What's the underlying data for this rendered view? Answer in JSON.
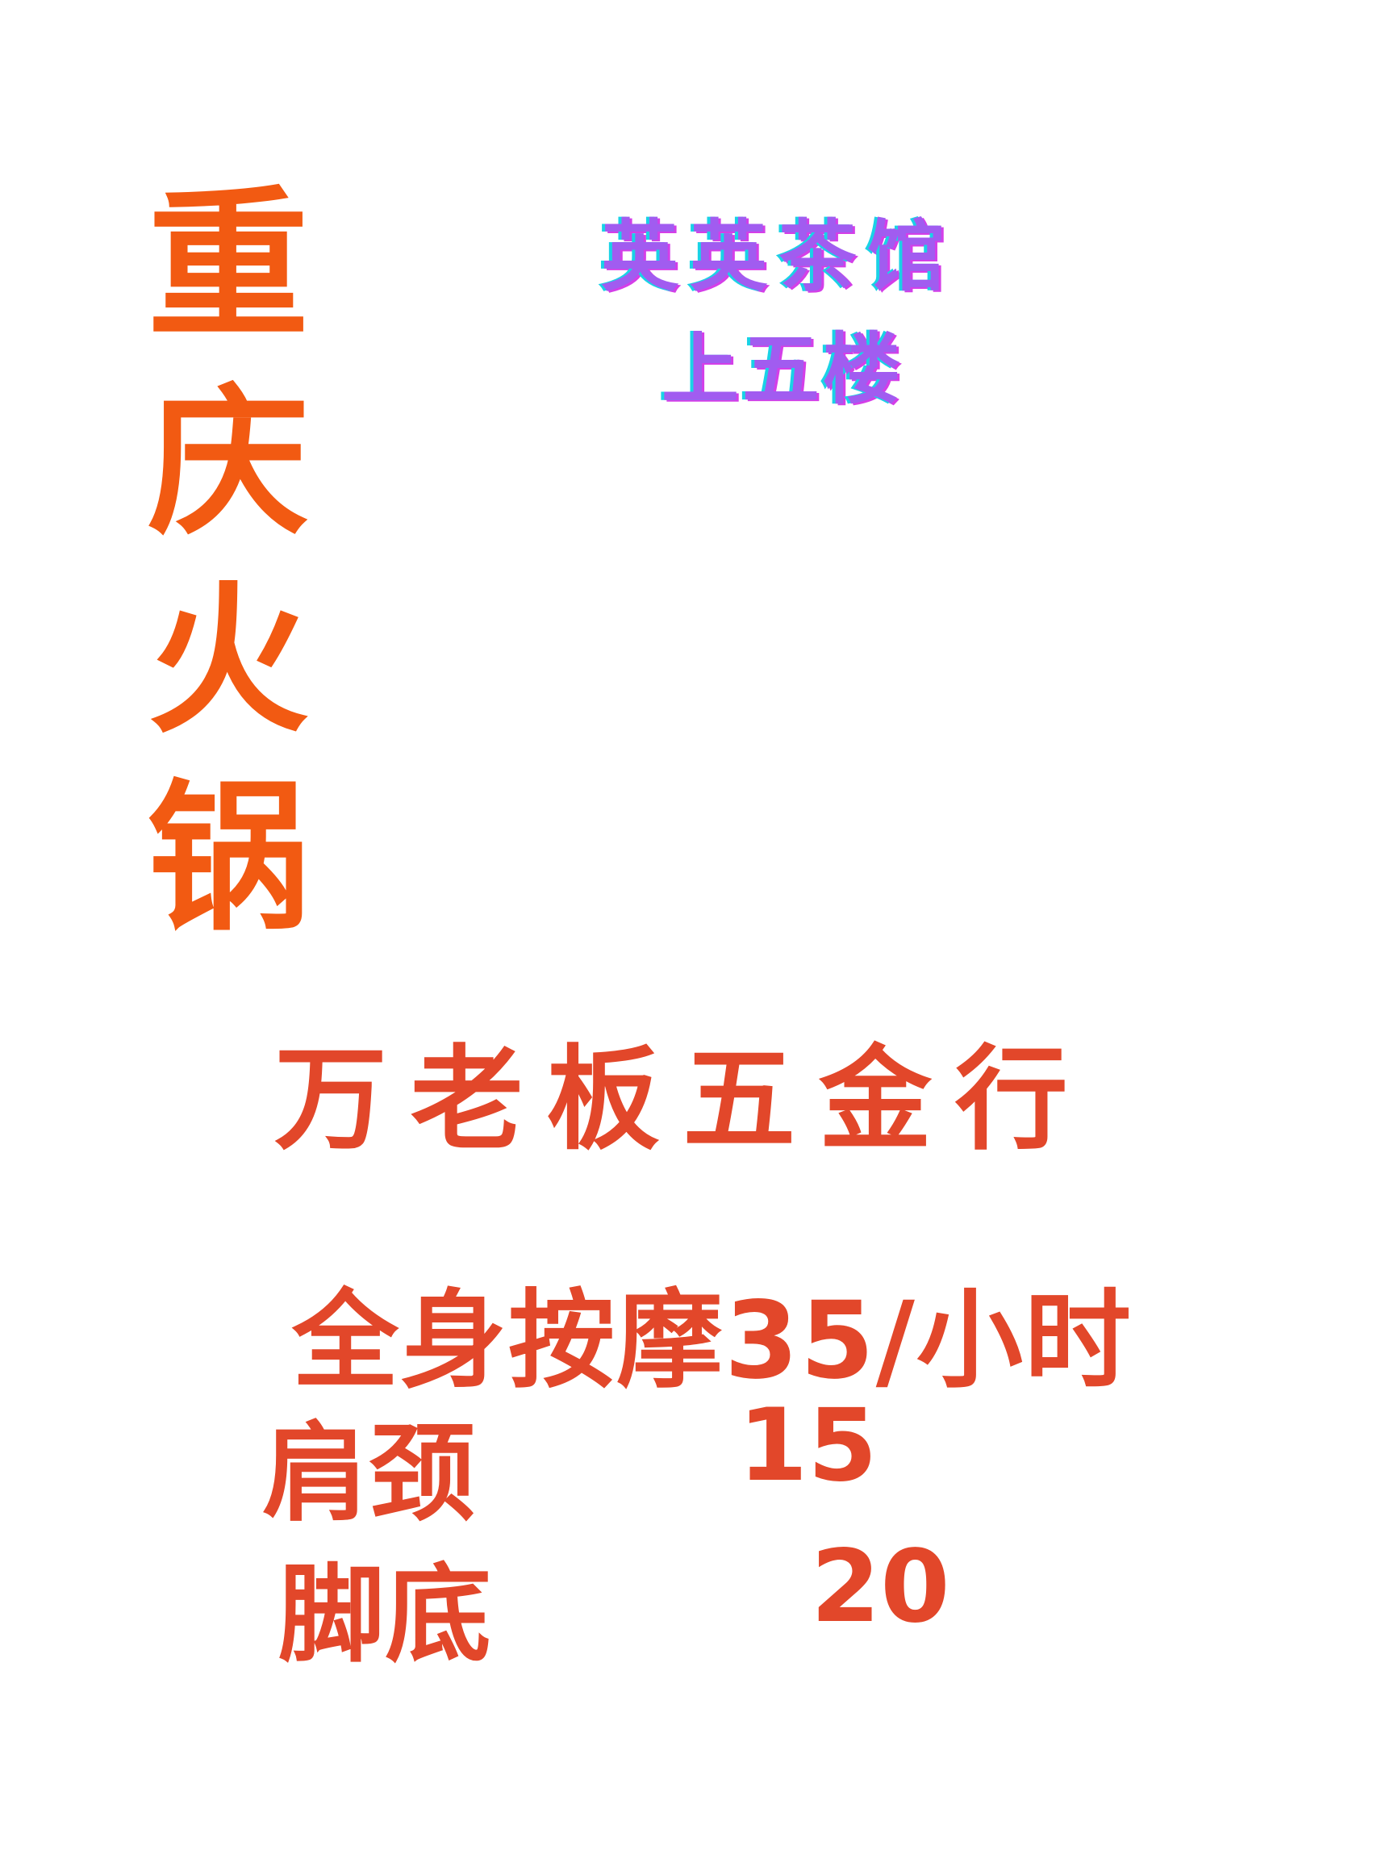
{
  "hotpot": {
    "chars": [
      "重",
      "庆",
      "火",
      "锅"
    ]
  },
  "teahouse": {
    "name": "英英茶馆",
    "floor": "上五楼"
  },
  "hardware_store": {
    "name": "万 老 板 五 金 行"
  },
  "massage": {
    "full_body": "全身按摩35/小时",
    "items": [
      {
        "name": "肩颈",
        "price": "15"
      },
      {
        "name": "脚底",
        "price": "20"
      }
    ]
  },
  "colors": {
    "hotpot_orange": "#f25a12",
    "text_red": "#e2472a",
    "tea_purple": "#a15cf0",
    "tea_cyan": "#19d2e6",
    "background": "#ffffff"
  }
}
